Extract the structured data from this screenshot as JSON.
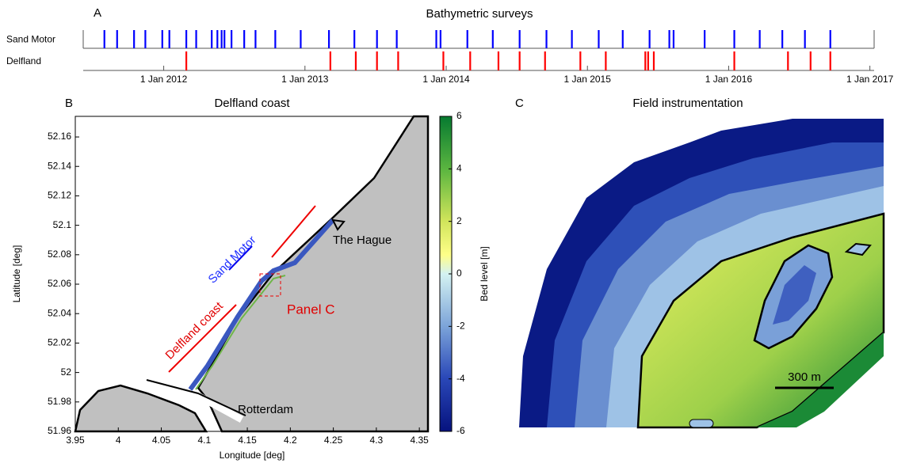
{
  "chart_data": [
    {
      "type": "event",
      "panel_label": "A",
      "title": "Bathymetric surveys",
      "series": [
        {
          "name": "Sand Motor",
          "color": "#0000ff",
          "x": [
            2011.58,
            2011.67,
            2011.79,
            2011.87,
            2011.99,
            2012.04,
            2012.16,
            2012.23,
            2012.34,
            2012.38,
            2012.41,
            2012.43,
            2012.48,
            2012.57,
            2012.65,
            2012.79,
            2012.97,
            2013.17,
            2013.35,
            2013.51,
            2013.65,
            2013.93,
            2013.96,
            2014.15,
            2014.33,
            2014.52,
            2014.71,
            2014.89,
            2015.08,
            2015.25,
            2015.44,
            2015.58,
            2015.61,
            2015.83,
            2016.04,
            2016.22,
            2016.38,
            2016.54,
            2016.72
          ]
        },
        {
          "name": "Delfland",
          "color": "#ff0000",
          "x": [
            2012.16,
            2013.18,
            2013.36,
            2013.51,
            2013.66,
            2013.98,
            2014.17,
            2014.37,
            2014.52,
            2014.7,
            2014.95,
            2015.13,
            2015.41,
            2015.43,
            2015.47,
            2016.04,
            2016.42,
            2016.58,
            2016.72
          ]
        }
      ],
      "xlim": [
        2011.43,
        2017.03
      ],
      "xticks": [
        {
          "value": 2012,
          "label": "1 Jan 2012"
        },
        {
          "value": 2013,
          "label": "1 Jan 2013"
        },
        {
          "value": 2014,
          "label": "1 Jan 2014"
        },
        {
          "value": 2015,
          "label": "1 Jan 2015"
        },
        {
          "value": 2016,
          "label": "1 Jan 2016"
        },
        {
          "value": 2017,
          "label": "1 Jan 2017"
        }
      ]
    },
    {
      "type": "map",
      "panel_label": "B",
      "title": "Delfland coast",
      "x_label": "Longitude [deg]",
      "y_label": "Latitude [deg]",
      "xlim": [
        3.95,
        4.36
      ],
      "ylim": [
        51.96,
        52.174
      ],
      "xticks": [
        3.95,
        4,
        4.05,
        4.1,
        4.15,
        4.2,
        4.25,
        4.3,
        4.35
      ],
      "yticks": [
        51.96,
        51.98,
        52,
        52.02,
        52.04,
        52.06,
        52.08,
        52.1,
        52.12,
        52.14,
        52.16
      ],
      "annotations": [
        "The Hague",
        "Rotterdam",
        "Sand Motor",
        "Delfland coast",
        "Panel C"
      ],
      "colorbar": {
        "label": "Bed level [m]",
        "lim": [
          -6,
          6
        ],
        "ticks": [
          -6,
          -4,
          -2,
          0,
          2,
          4,
          6
        ]
      }
    }
  ],
  "panel_c": {
    "panel_label": "C",
    "title": "Field instrumentation",
    "scale_bar": "300 m"
  }
}
